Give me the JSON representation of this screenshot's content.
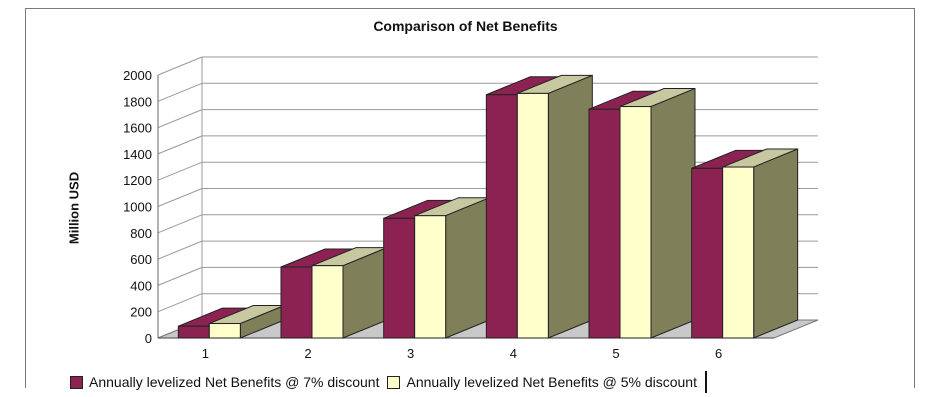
{
  "chart_data": {
    "type": "bar",
    "title": "Comparison of Net Benefits",
    "ylabel": "Million USD",
    "xlabel": "",
    "categories": [
      "1",
      "2",
      "3",
      "4",
      "5",
      "6"
    ],
    "series": [
      {
        "name": "Annually levelized Net Benefits @ 7% discount",
        "values": [
          90,
          540,
          910,
          1850,
          1740,
          1290
        ],
        "color": "#8b2252"
      },
      {
        "name": "Annually levelized Net Benefits @ 5% discount",
        "values": [
          110,
          550,
          930,
          1860,
          1760,
          1300
        ],
        "color": "#ffffcc"
      }
    ],
    "ylim": [
      0,
      2000
    ],
    "yticks": [
      0,
      200,
      400,
      600,
      800,
      1000,
      1200,
      1400,
      1600,
      1800,
      2000
    ],
    "grid": true,
    "legend_position": "bottom",
    "style": "3d-clustered-column"
  }
}
